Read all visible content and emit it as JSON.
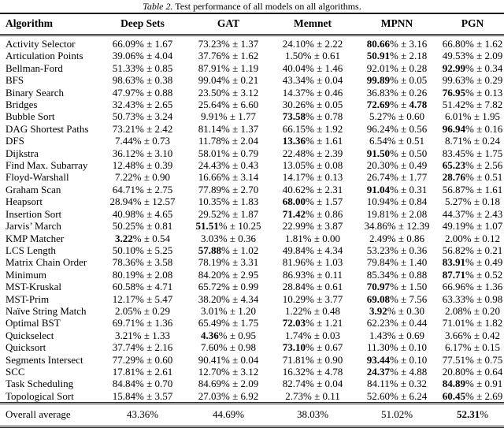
{
  "caption": {
    "label": "Table 2.",
    "text": " Test performance of all models on all algorithms."
  },
  "symbols": {
    "percent": "%",
    "plus_minus": "±"
  },
  "table": {
    "columns": [
      "Algorithm",
      "Deep Sets",
      "GAT",
      "Memnet",
      "MPNN",
      "PGN"
    ],
    "rows": [
      {
        "name": "Activity Selector",
        "cells": [
          {
            "v": "66.09",
            "e": "1.67",
            "b": 0
          },
          {
            "v": "73.23",
            "e": "1.37",
            "b": 0
          },
          {
            "v": "24.10",
            "e": "2.22",
            "b": 0
          },
          {
            "v": "80.66",
            "e": "3.16",
            "b": 1
          },
          {
            "v": "66.80",
            "e": "1.62",
            "b": 0
          }
        ]
      },
      {
        "name": "Articulation Points",
        "cells": [
          {
            "v": "39.06",
            "e": "4.04",
            "b": 0
          },
          {
            "v": "37.76",
            "e": "1.62",
            "b": 0
          },
          {
            "v": "1.50",
            "e": "0.61",
            "b": 0
          },
          {
            "v": "50.91",
            "e": "2.18",
            "b": 1
          },
          {
            "v": "49.53",
            "e": "2.09",
            "b": 0
          }
        ]
      },
      {
        "name": "Bellman-Ford",
        "cells": [
          {
            "v": "51.33",
            "e": "0.85",
            "b": 0
          },
          {
            "v": "87.91",
            "e": "1.19",
            "b": 0
          },
          {
            "v": "40.04",
            "e": "1.46",
            "b": 0
          },
          {
            "v": "92.01",
            "e": "0.28",
            "b": 0
          },
          {
            "v": "92.99",
            "e": "0.34",
            "b": 1
          }
        ]
      },
      {
        "name": "BFS",
        "cells": [
          {
            "v": "98.63",
            "e": "0.38",
            "b": 0
          },
          {
            "v": "99.04",
            "e": "0.21",
            "b": 0
          },
          {
            "v": "43.34",
            "e": "0.04",
            "b": 0
          },
          {
            "v": "99.89",
            "e": "0.05",
            "b": 1
          },
          {
            "v": "99.63",
            "e": "0.29",
            "b": 0
          }
        ]
      },
      {
        "name": "Binary Search",
        "cells": [
          {
            "v": "47.97",
            "e": "0.88",
            "b": 0
          },
          {
            "v": "23.50",
            "e": "3.12",
            "b": 0
          },
          {
            "v": "14.37",
            "e": "0.46",
            "b": 0
          },
          {
            "v": "36.83",
            "e": "0.26",
            "b": 0
          },
          {
            "v": "76.95",
            "e": "0.13",
            "b": 1
          }
        ]
      },
      {
        "name": "Bridges",
        "cells": [
          {
            "v": "32.43",
            "e": "2.65",
            "b": 0
          },
          {
            "v": "25.64",
            "e": "6.60",
            "b": 0
          },
          {
            "v": "30.26",
            "e": "0.05",
            "b": 0
          },
          {
            "v": "72.69",
            "e": "4.78",
            "b": 1,
            "be": 1
          },
          {
            "v": "51.42",
            "e": "7.82",
            "b": 0
          }
        ]
      },
      {
        "name": "Bubble Sort",
        "cells": [
          {
            "v": "50.73",
            "e": "3.24",
            "b": 0
          },
          {
            "v": "9.91",
            "e": "1.77",
            "b": 0
          },
          {
            "v": "73.58",
            "e": "0.78",
            "b": 1
          },
          {
            "v": "5.27",
            "e": "0.60",
            "b": 0
          },
          {
            "v": "6.01",
            "e": "1.95",
            "b": 0
          }
        ]
      },
      {
        "name": "DAG Shortest Paths",
        "cells": [
          {
            "v": "73.21",
            "e": "2.42",
            "b": 0
          },
          {
            "v": "81.14",
            "e": "1.37",
            "b": 0
          },
          {
            "v": "66.15",
            "e": "1.92",
            "b": 0
          },
          {
            "v": "96.24",
            "e": "0.56",
            "b": 0
          },
          {
            "v": "96.94",
            "e": "0.16",
            "b": 1
          }
        ]
      },
      {
        "name": "DFS",
        "cells": [
          {
            "v": "7.44",
            "e": "0.73",
            "b": 0
          },
          {
            "v": "11.78",
            "e": "2.04",
            "b": 0
          },
          {
            "v": "13.36",
            "e": "1.61",
            "b": 1
          },
          {
            "v": "6.54",
            "e": "0.51",
            "b": 0
          },
          {
            "v": "8.71",
            "e": "0.24",
            "b": 0
          }
        ]
      },
      {
        "name": "Dijkstra",
        "cells": [
          {
            "v": "36.12",
            "e": "3.10",
            "b": 0
          },
          {
            "v": "58.01",
            "e": "0.79",
            "b": 0
          },
          {
            "v": "22.48",
            "e": "2.39",
            "b": 0
          },
          {
            "v": "91.50",
            "e": "0.50",
            "b": 1
          },
          {
            "v": "83.45",
            "e": "1.75",
            "b": 0
          }
        ]
      },
      {
        "name": "Find Max. Subarray",
        "cells": [
          {
            "v": "12.48",
            "e": "0.39",
            "b": 0
          },
          {
            "v": "24.43",
            "e": "0.43",
            "b": 0
          },
          {
            "v": "13.05",
            "e": "0.08",
            "b": 0
          },
          {
            "v": "20.30",
            "e": "0.49",
            "b": 0
          },
          {
            "v": "65.23",
            "e": "2.56",
            "b": 1
          }
        ]
      },
      {
        "name": "Floyd-Warshall",
        "cells": [
          {
            "v": "7.22",
            "e": "0.90",
            "b": 0
          },
          {
            "v": "16.66",
            "e": "3.14",
            "b": 0
          },
          {
            "v": "14.17",
            "e": "0.13",
            "b": 0
          },
          {
            "v": "26.74",
            "e": "1.77",
            "b": 0
          },
          {
            "v": "28.76",
            "e": "0.51",
            "b": 1
          }
        ]
      },
      {
        "name": "Graham Scan",
        "cells": [
          {
            "v": "64.71",
            "e": "2.75",
            "b": 0
          },
          {
            "v": "77.89",
            "e": "2.70",
            "b": 0
          },
          {
            "v": "40.62",
            "e": "2.31",
            "b": 0
          },
          {
            "v": "91.04",
            "e": "0.31",
            "b": 1
          },
          {
            "v": "56.87",
            "e": "1.61",
            "b": 0
          }
        ]
      },
      {
        "name": "Heapsort",
        "cells": [
          {
            "v": "28.94",
            "e": "12.57",
            "b": 0
          },
          {
            "v": "10.35",
            "e": "1.83",
            "b": 0
          },
          {
            "v": "68.00",
            "e": "1.57",
            "b": 1
          },
          {
            "v": "10.94",
            "e": "0.84",
            "b": 0
          },
          {
            "v": "5.27",
            "e": "0.18",
            "b": 0
          }
        ]
      },
      {
        "name": "Insertion Sort",
        "cells": [
          {
            "v": "40.98",
            "e": "4.65",
            "b": 0
          },
          {
            "v": "29.52",
            "e": "1.87",
            "b": 0
          },
          {
            "v": "71.42",
            "e": "0.86",
            "b": 1
          },
          {
            "v": "19.81",
            "e": "2.08",
            "b": 0
          },
          {
            "v": "44.37",
            "e": "2.43",
            "b": 0
          }
        ]
      },
      {
        "name": "Jarvis’ March",
        "cells": [
          {
            "v": "50.25",
            "e": "0.81",
            "b": 0
          },
          {
            "v": "51.51",
            "e": "10.25",
            "b": 1
          },
          {
            "v": "22.99",
            "e": "3.87",
            "b": 0
          },
          {
            "v": "34.86",
            "e": "12.39",
            "b": 0
          },
          {
            "v": "49.19",
            "e": "1.07",
            "b": 0
          }
        ]
      },
      {
        "name": "KMP Matcher",
        "cells": [
          {
            "v": "3.22",
            "e": "0.54",
            "b": 1
          },
          {
            "v": "3.03",
            "e": "0.36",
            "b": 0
          },
          {
            "v": "1.81",
            "e": "0.00",
            "b": 0
          },
          {
            "v": "2.49",
            "e": "0.86",
            "b": 0
          },
          {
            "v": "2.00",
            "e": "0.12",
            "b": 0
          }
        ]
      },
      {
        "name": "LCS Length",
        "cells": [
          {
            "v": "50.10",
            "e": "5.25",
            "b": 0
          },
          {
            "v": "57.88",
            "e": "1.02",
            "b": 1
          },
          {
            "v": "49.84",
            "e": "4.34",
            "b": 0
          },
          {
            "v": "53.23",
            "e": "0.36",
            "b": 0
          },
          {
            "v": "56.82",
            "e": "0.21",
            "b": 0
          }
        ]
      },
      {
        "name": "Matrix Chain Order",
        "cells": [
          {
            "v": "78.36",
            "e": "3.58",
            "b": 0
          },
          {
            "v": "78.19",
            "e": "3.31",
            "b": 0
          },
          {
            "v": "81.96",
            "e": "1.03",
            "b": 0
          },
          {
            "v": "79.84",
            "e": "1.40",
            "b": 0
          },
          {
            "v": "83.91",
            "e": "0.49",
            "b": 1
          }
        ]
      },
      {
        "name": "Minimum",
        "cells": [
          {
            "v": "80.19",
            "e": "2.08",
            "b": 0
          },
          {
            "v": "84.20",
            "e": "2.95",
            "b": 0
          },
          {
            "v": "86.93",
            "e": "0.11",
            "b": 0
          },
          {
            "v": "85.34",
            "e": "0.88",
            "b": 0
          },
          {
            "v": "87.71",
            "e": "0.52",
            "b": 1
          }
        ]
      },
      {
        "name": "MST-Kruskal",
        "cells": [
          {
            "v": "60.58",
            "e": "4.71",
            "b": 0
          },
          {
            "v": "65.72",
            "e": "0.99",
            "b": 0
          },
          {
            "v": "28.84",
            "e": "0.61",
            "b": 0
          },
          {
            "v": "70.97",
            "e": "1.50",
            "b": 1
          },
          {
            "v": "66.96",
            "e": "1.36",
            "b": 0
          }
        ]
      },
      {
        "name": "MST-Prim",
        "cells": [
          {
            "v": "12.17",
            "e": "5.47",
            "b": 0
          },
          {
            "v": "38.20",
            "e": "4.34",
            "b": 0
          },
          {
            "v": "10.29",
            "e": "3.77",
            "b": 0
          },
          {
            "v": "69.08",
            "e": "7.56",
            "b": 1
          },
          {
            "v": "63.33",
            "e": "0.98",
            "b": 0
          }
        ]
      },
      {
        "name": "Naïve String Match",
        "cells": [
          {
            "v": "2.05",
            "e": "0.29",
            "b": 0
          },
          {
            "v": "3.01",
            "e": "1.20",
            "b": 0
          },
          {
            "v": "1.22",
            "e": "0.48",
            "b": 0
          },
          {
            "v": "3.92",
            "e": "0.30",
            "b": 1
          },
          {
            "v": "2.08",
            "e": "0.20",
            "b": 0
          }
        ]
      },
      {
        "name": "Optimal BST",
        "cells": [
          {
            "v": "69.71",
            "e": "1.36",
            "b": 0
          },
          {
            "v": "65.49",
            "e": "1.75",
            "b": 0
          },
          {
            "v": "72.03",
            "e": "1.21",
            "b": 1
          },
          {
            "v": "62.23",
            "e": "0.44",
            "b": 0
          },
          {
            "v": "71.01",
            "e": "1.82",
            "b": 0
          }
        ]
      },
      {
        "name": "Quickselect",
        "cells": [
          {
            "v": "3.21",
            "e": "1.33",
            "b": 0
          },
          {
            "v": "4.36",
            "e": "0.95",
            "b": 1
          },
          {
            "v": "1.74",
            "e": "0.03",
            "b": 0
          },
          {
            "v": "1.43",
            "e": "0.69",
            "b": 0
          },
          {
            "v": "3.66",
            "e": "0.42",
            "b": 0
          }
        ]
      },
      {
        "name": "Quicksort",
        "cells": [
          {
            "v": "37.74",
            "e": "2.16",
            "b": 0
          },
          {
            "v": "7.60",
            "e": "0.98",
            "b": 0
          },
          {
            "v": "73.10",
            "e": "0.67",
            "b": 1
          },
          {
            "v": "11.30",
            "e": "0.10",
            "b": 0
          },
          {
            "v": "6.17",
            "e": "0.15",
            "b": 0
          }
        ]
      },
      {
        "name": "Segments Intersect",
        "cells": [
          {
            "v": "77.29",
            "e": "0.60",
            "b": 0
          },
          {
            "v": "90.41",
            "e": "0.04",
            "b": 0
          },
          {
            "v": "71.81",
            "e": "0.90",
            "b": 0
          },
          {
            "v": "93.44",
            "e": "0.10",
            "b": 1
          },
          {
            "v": "77.51",
            "e": "0.75",
            "b": 0
          }
        ]
      },
      {
        "name": "SCC",
        "cells": [
          {
            "v": "17.81",
            "e": "2.61",
            "b": 0
          },
          {
            "v": "12.70",
            "e": "3.12",
            "b": 0
          },
          {
            "v": "16.32",
            "e": "4.78",
            "b": 0
          },
          {
            "v": "24.37",
            "e": "4.88",
            "b": 1
          },
          {
            "v": "20.80",
            "e": "0.64",
            "b": 0
          }
        ]
      },
      {
        "name": "Task Scheduling",
        "cells": [
          {
            "v": "84.84",
            "e": "0.70",
            "b": 0
          },
          {
            "v": "84.69",
            "e": "2.09",
            "b": 0
          },
          {
            "v": "82.74",
            "e": "0.04",
            "b": 0
          },
          {
            "v": "84.11",
            "e": "0.32",
            "b": 0
          },
          {
            "v": "84.89",
            "e": "0.91",
            "b": 1
          }
        ]
      },
      {
        "name": "Topological Sort",
        "cells": [
          {
            "v": "15.84",
            "e": "3.57",
            "b": 0
          },
          {
            "v": "27.03",
            "e": "6.92",
            "b": 0
          },
          {
            "v": "2.73",
            "e": "0.11",
            "b": 0
          },
          {
            "v": "52.60",
            "e": "6.24",
            "b": 0
          },
          {
            "v": "60.45",
            "e": "2.69",
            "b": 1
          }
        ]
      }
    ],
    "footer": {
      "label": "Overall average",
      "cells": [
        {
          "v": "43.36",
          "b": 0
        },
        {
          "v": "44.69",
          "b": 0
        },
        {
          "v": "38.03",
          "b": 0
        },
        {
          "v": "51.02",
          "b": 0
        },
        {
          "v": "52.31",
          "b": 1
        }
      ]
    }
  }
}
